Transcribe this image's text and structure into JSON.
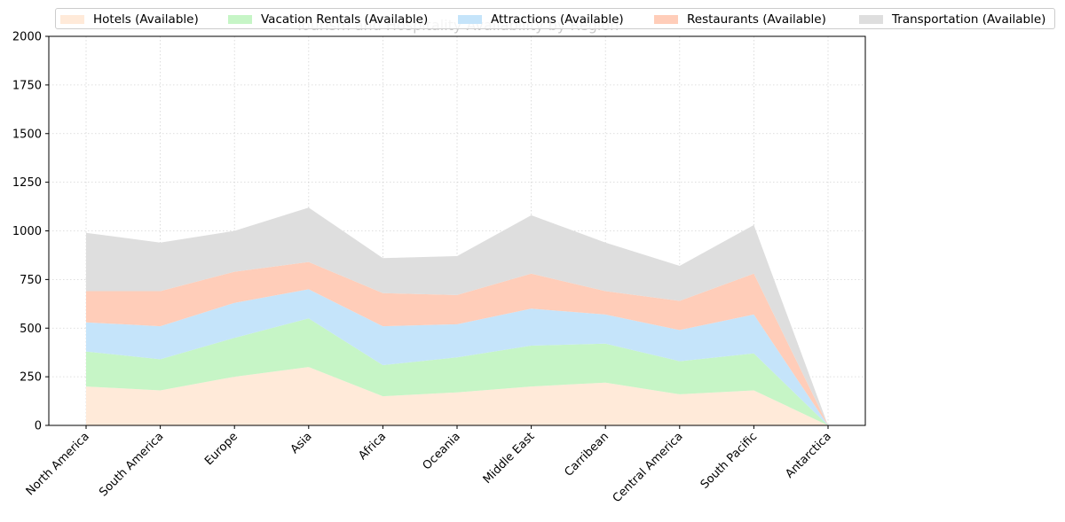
{
  "chart_data": {
    "type": "area",
    "stacked": true,
    "title": "Tourism and Hospitality Availability by Region",
    "categories": [
      "North America",
      "South America",
      "Europe",
      "Asia",
      "Africa",
      "Oceania",
      "Middle East",
      "Carribean",
      "Central America",
      "South Pacific",
      "Antarctica"
    ],
    "series": [
      {
        "name": "Hotels (Available)",
        "color": "#ffead9",
        "values": [
          200,
          180,
          250,
          300,
          150,
          170,
          200,
          220,
          160,
          180,
          0
        ]
      },
      {
        "name": "Vacation Rentals (Available)",
        "color": "#c6f5c6",
        "values": [
          180,
          160,
          200,
          250,
          160,
          180,
          210,
          200,
          170,
          190,
          0
        ]
      },
      {
        "name": "Attractions (Available)",
        "color": "#c5e4fa",
        "values": [
          150,
          170,
          180,
          150,
          200,
          170,
          190,
          150,
          160,
          200,
          0
        ]
      },
      {
        "name": "Restaurants (Available)",
        "color": "#ffcdb9",
        "values": [
          160,
          180,
          160,
          140,
          170,
          150,
          180,
          120,
          150,
          210,
          0
        ]
      },
      {
        "name": "Transportation (Available)",
        "color": "#dedede",
        "values": [
          300,
          250,
          210,
          280,
          180,
          200,
          300,
          250,
          180,
          250,
          0
        ]
      }
    ],
    "ylim": [
      0,
      2000
    ],
    "yticks": [
      0,
      250,
      500,
      750,
      1000,
      1250,
      1500,
      1750,
      2000
    ],
    "grid": true,
    "legend_position": "top"
  }
}
